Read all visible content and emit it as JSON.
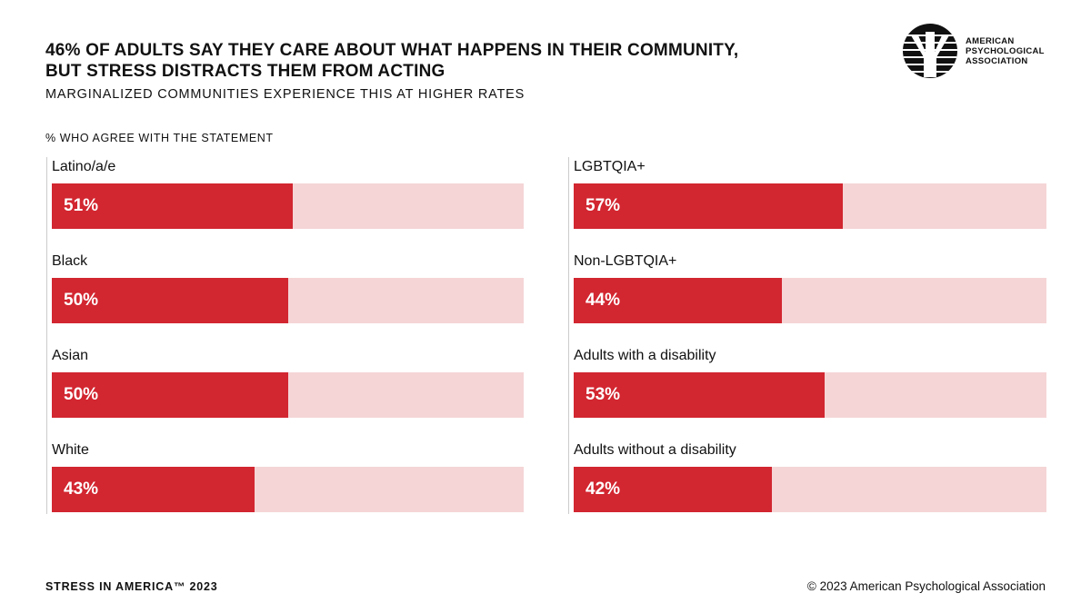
{
  "header": {
    "title_line1": "46% OF ADULTS SAY THEY CARE ABOUT WHAT HAPPENS IN THEIR COMMUNITY,",
    "title_line2": "BUT STRESS DISTRACTS THEM FROM ACTING",
    "subtitle": "MARGINALIZED COMMUNITIES EXPERIENCE THIS AT HIGHER RATES",
    "logo_text": [
      "AMERICAN",
      "PSYCHOLOGICAL",
      "ASSOCIATION"
    ]
  },
  "chart_data": {
    "type": "bar",
    "orientation": "horizontal",
    "ylabel": "% WHO AGREE WITH THE STATEMENT",
    "xlim": [
      0,
      100
    ],
    "colors": {
      "fill": "#d22630",
      "track": "#f5d5d6"
    },
    "panels": [
      {
        "categories": [
          "Latino/a/e",
          "Black",
          "Asian",
          "White"
        ],
        "values": [
          51,
          50,
          50,
          43
        ],
        "labels": [
          "51%",
          "50%",
          "50%",
          "43%"
        ]
      },
      {
        "categories": [
          "LGBTQIA+",
          "Non-LGBTQIA+",
          "Adults with a disability",
          "Adults without a disability"
        ],
        "values": [
          57,
          44,
          53,
          42
        ],
        "labels": [
          "57%",
          "44%",
          "53%",
          "42%"
        ]
      }
    ]
  },
  "footer": {
    "left": "STRESS IN AMERICA™ 2023",
    "right": "© 2023 American Psychological Association"
  }
}
